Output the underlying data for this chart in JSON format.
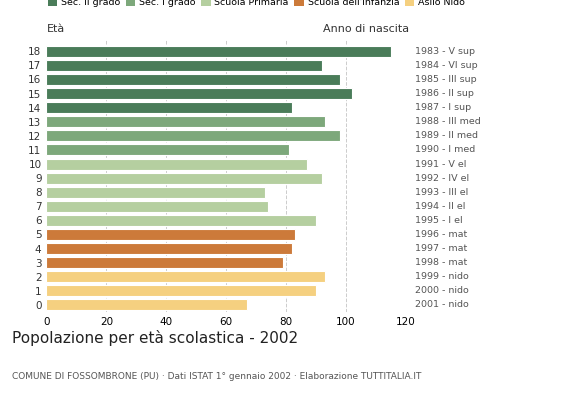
{
  "ages": [
    18,
    17,
    16,
    15,
    14,
    13,
    12,
    11,
    10,
    9,
    8,
    7,
    6,
    5,
    4,
    3,
    2,
    1,
    0
  ],
  "values": [
    115,
    92,
    98,
    102,
    82,
    93,
    98,
    81,
    87,
    92,
    73,
    74,
    90,
    83,
    82,
    79,
    93,
    90,
    67
  ],
  "anno_nascita": [
    "1983 - V sup",
    "1984 - VI sup",
    "1985 - III sup",
    "1986 - II sup",
    "1987 - I sup",
    "1988 - III med",
    "1989 - II med",
    "1990 - I med",
    "1991 - V el",
    "1992 - IV el",
    "1993 - III el",
    "1994 - II el",
    "1995 - I el",
    "1996 - mat",
    "1997 - mat",
    "1998 - mat",
    "1999 - nido",
    "2000 - nido",
    "2001 - nido"
  ],
  "bar_colors": [
    "#4a7c59",
    "#4a7c59",
    "#4a7c59",
    "#4a7c59",
    "#4a7c59",
    "#7da87b",
    "#7da87b",
    "#7da87b",
    "#b5cfa0",
    "#b5cfa0",
    "#b5cfa0",
    "#b5cfa0",
    "#b5cfa0",
    "#cc7a3a",
    "#cc7a3a",
    "#cc7a3a",
    "#f5d080",
    "#f5d080",
    "#f5d080"
  ],
  "title": "Popolazione per età scolastica - 2002",
  "subtitle": "COMUNE DI FOSSOMBRONE (PU) · Dati ISTAT 1° gennaio 2002 · Elaborazione TUTTITALIA.IT",
  "label_eta": "Età",
  "label_anno": "Anno di nascita",
  "xlim": [
    0,
    120
  ],
  "xticks": [
    0,
    20,
    40,
    60,
    80,
    100,
    120
  ],
  "bg_color": "#ffffff",
  "grid_color": "#cccccc",
  "legend_labels": [
    "Sec. II grado",
    "Sec. I grado",
    "Scuola Primaria",
    "Scuola dell'Infanzia",
    "Asilo Nido"
  ],
  "legend_colors": [
    "#4a7c59",
    "#7da87b",
    "#b5cfa0",
    "#cc7a3a",
    "#f5d080"
  ]
}
